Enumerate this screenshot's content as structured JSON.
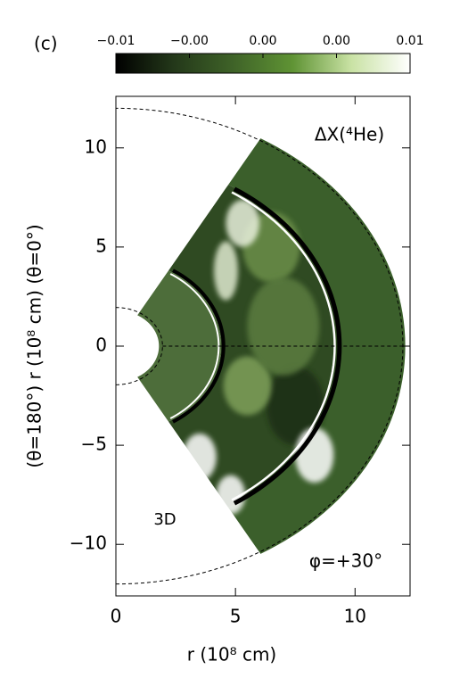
{
  "chart_data": {
    "type": "heatmap",
    "panel_label": "(c)",
    "quantity_label": "ΔX(⁴He)",
    "dimension_label": "3D",
    "angle_label": "φ=+30°",
    "xlabel": "r (10⁸ cm)",
    "ylabel": "(θ=180°)  r (10⁸ cm)  (θ=0°)",
    "xlim": [
      0,
      12.3
    ],
    "ylim": [
      -12.6,
      12.6
    ],
    "xticks": [
      0,
      5,
      10
    ],
    "yticks": [
      {
        "value": -10,
        "label": "−10"
      },
      {
        "value": -5,
        "label": "−5"
      },
      0,
      5,
      10
    ],
    "colorbar": {
      "lim": [
        -0.01,
        0.01
      ],
      "ticks": [
        {
          "value": -0.01,
          "label": "−0.01"
        },
        {
          "value": -0.005,
          "label": "−0.00"
        },
        {
          "value": 0,
          "label": "0.00"
        },
        {
          "value": 0.005,
          "label": "0.00"
        },
        {
          "value": 0.01,
          "label": "0.01"
        }
      ],
      "colors": [
        "#000000",
        "#24391a",
        "#3f6328",
        "#5f9334",
        "#c9e2a4",
        "#ffffff"
      ]
    }
  }
}
